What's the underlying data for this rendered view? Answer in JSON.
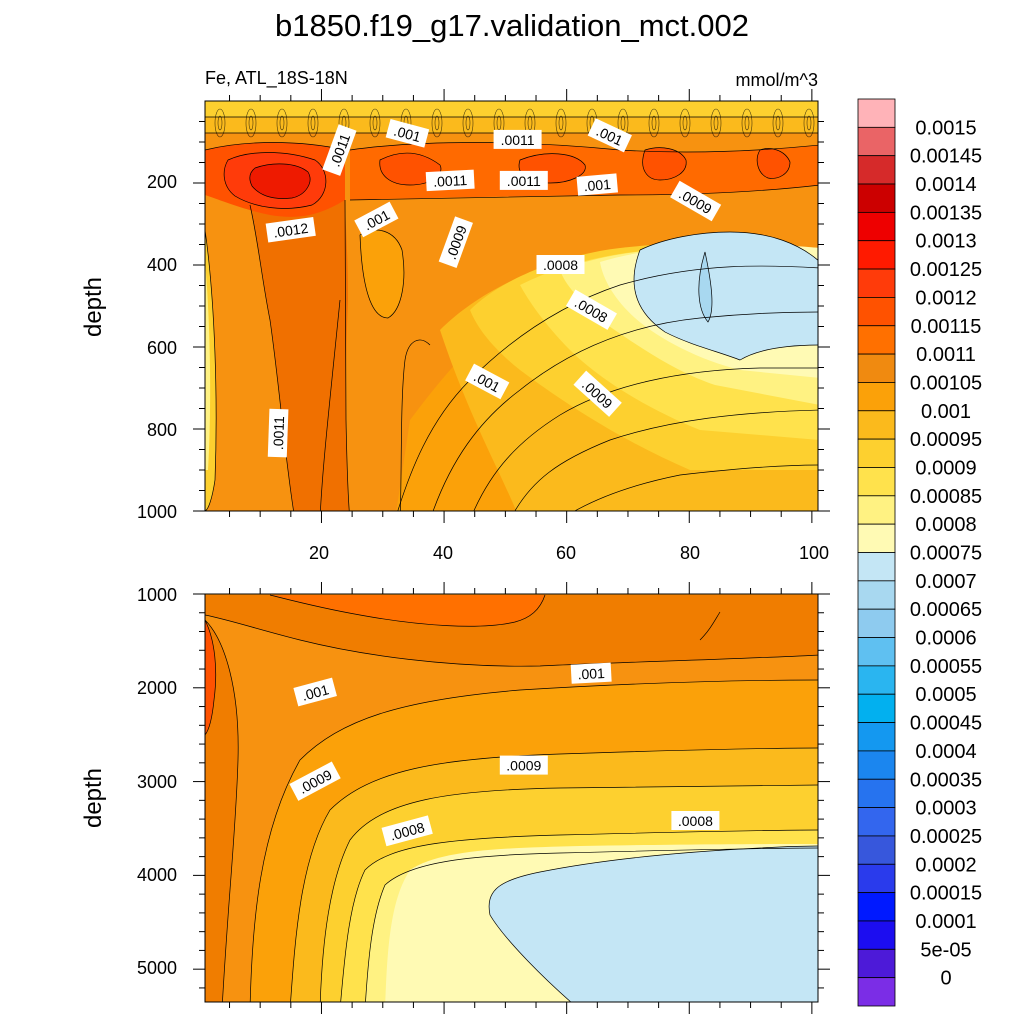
{
  "figure": {
    "title": "b1850.f19_g17.validation_mct.002",
    "left_string": "Fe, ATL_18S-18N",
    "right_string": "mmol/m^3"
  },
  "colorbar": {
    "labels": [
      "0.0015",
      "0.00145",
      "0.0014",
      "0.00135",
      "0.0013",
      "0.00125",
      "0.0012",
      "0.00115",
      "0.0011",
      "0.00105",
      "0.001",
      "0.00095",
      "0.0009",
      "0.00085",
      "0.0008",
      "0.00075",
      "0.0007",
      "0.00065",
      "0.0006",
      "0.00055",
      "0.0005",
      "0.00045",
      "0.0004",
      "0.00035",
      "0.0003",
      "0.00025",
      "0.0002",
      "0.00015",
      "0.0001",
      "5e-05",
      "0"
    ],
    "colors": [
      "#ffb3b8",
      "#ea6466",
      "#d62a2a",
      "#cc0000",
      "#ee0000",
      "#ff1a00",
      "#ff3b0a",
      "#ff5200",
      "#ff7000",
      "#f08a10",
      "#fba109",
      "#fbba1c",
      "#fdd02f",
      "#ffe24c",
      "#fff282",
      "#fffab4",
      "#c4e6f5",
      "#a8d8f0",
      "#8ecbef",
      "#5fc0f1",
      "#2ab5f0",
      "#02b0ef",
      "#1498f0",
      "#1b86ef",
      "#2673ef",
      "#3366ee",
      "#3757dc",
      "#2a3bec",
      "#0019ff",
      "#1c0df0",
      "#4d1ad8",
      "#7b2de6"
    ]
  },
  "chart_data": [
    {
      "type": "heatmap",
      "panel": "upper",
      "ylabel": "depth",
      "xlim": [
        1,
        101
      ],
      "ylim": [
        1000,
        0
      ],
      "xticks": [
        "20",
        "40",
        "60",
        "80",
        "100"
      ],
      "yticks": [
        "200",
        "400",
        "600",
        "800",
        "1000"
      ],
      "contour_labels": [
        {
          "text": ".0011",
          "x": 23,
          "y": 120,
          "rot": -70
        },
        {
          "text": ".001",
          "x": 34,
          "y": 80,
          "rot": 15
        },
        {
          "text": ".0011",
          "x": 52,
          "y": 95,
          "rot": 0
        },
        {
          "text": ".001",
          "x": 67,
          "y": 85,
          "rot": 25
        },
        {
          "text": ".0011",
          "x": 41,
          "y": 195,
          "rot": -3
        },
        {
          "text": ".0011",
          "x": 53,
          "y": 195,
          "rot": 0
        },
        {
          "text": ".001",
          "x": 65,
          "y": 205,
          "rot": -5
        },
        {
          "text": ".0009",
          "x": 81,
          "y": 245,
          "rot": 30
        },
        {
          "text": ".0012",
          "x": 15,
          "y": 315,
          "rot": -8
        },
        {
          "text": ".001",
          "x": 29,
          "y": 290,
          "rot": -28
        },
        {
          "text": ".0009",
          "x": 42,
          "y": 345,
          "rot": -70
        },
        {
          "text": ".0008",
          "x": 59,
          "y": 400,
          "rot": 0
        },
        {
          "text": ".0008",
          "x": 64,
          "y": 510,
          "rot": 30
        },
        {
          "text": ".001",
          "x": 47,
          "y": 685,
          "rot": 28
        },
        {
          "text": ".0009",
          "x": 65,
          "y": 715,
          "rot": 42
        },
        {
          "text": ".0011",
          "x": 13,
          "y": 810,
          "rot": -88
        }
      ]
    },
    {
      "type": "heatmap",
      "panel": "lower",
      "ylabel": "depth",
      "xlim": [
        1,
        101
      ],
      "ylim": [
        5350,
        1000
      ],
      "yticks": [
        "1000",
        "2000",
        "3000",
        "4000",
        "5000"
      ],
      "contour_labels": [
        {
          "text": ".001",
          "x": 19,
          "y": 2050,
          "rot": -15
        },
        {
          "text": ".001",
          "x": 64,
          "y": 1850,
          "rot": -3
        },
        {
          "text": ".0009",
          "x": 19,
          "y": 3000,
          "rot": -28
        },
        {
          "text": ".0009",
          "x": 53,
          "y": 2830,
          "rot": 0
        },
        {
          "text": ".0008",
          "x": 34,
          "y": 3530,
          "rot": -15
        },
        {
          "text": ".0008",
          "x": 81,
          "y": 3420,
          "rot": 0
        }
      ]
    }
  ]
}
